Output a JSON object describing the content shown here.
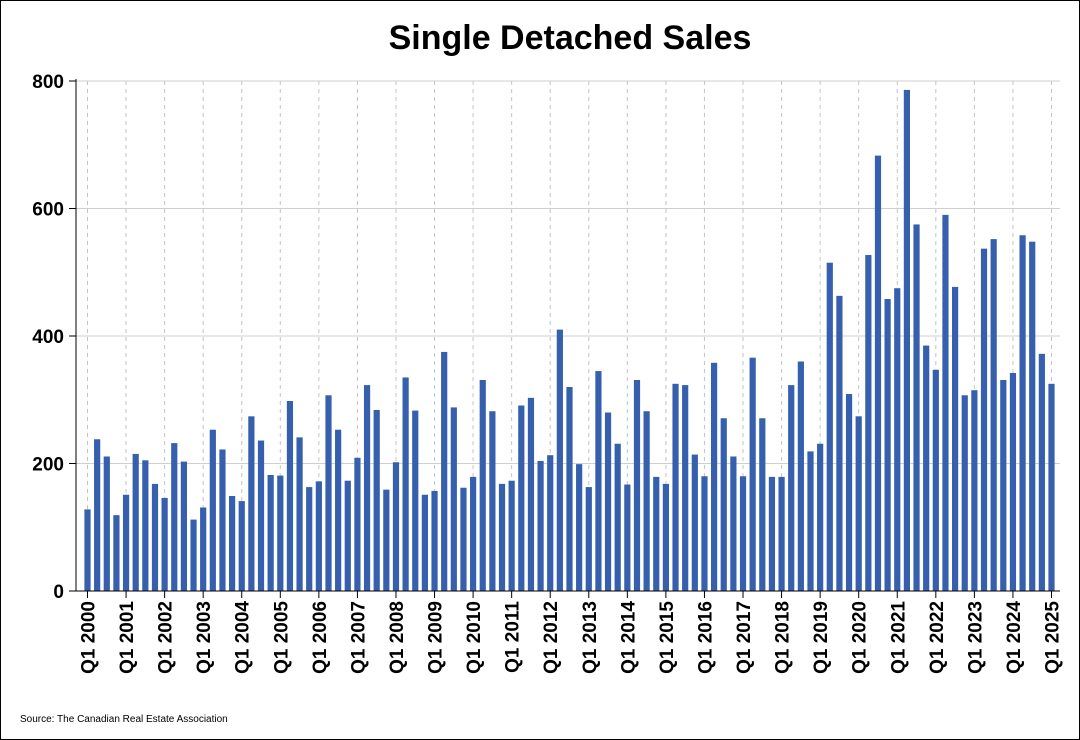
{
  "chart_data": {
    "type": "bar",
    "title": "Single Detached Sales",
    "xlabel": "",
    "ylabel": "",
    "ylim": [
      0,
      800
    ],
    "yticks": [
      0,
      200,
      400,
      600,
      800
    ],
    "grid": true,
    "bar_color": "#3660AD",
    "source": "Source: The Canadian Real Estate Association",
    "x_tick_labels": [
      "Q1 2000",
      "Q1 2001",
      "Q1 2002",
      "Q1 2003",
      "Q1 2004",
      "Q1 2005",
      "Q1 2006",
      "Q1 2007",
      "Q1 2008",
      "Q1 2009",
      "Q1 2010",
      "Q1 2011",
      "Q1 2012",
      "Q1 2013",
      "Q1 2014",
      "Q1 2015",
      "Q1 2016",
      "Q1 2017",
      "Q1 2018",
      "Q1 2019",
      "Q1 2020",
      "Q1 2021",
      "Q1 2022",
      "Q1 2023",
      "Q1 2024",
      "Q1 2025"
    ],
    "categories": [
      "Q1 2000",
      "Q2 2000",
      "Q3 2000",
      "Q4 2000",
      "Q1 2001",
      "Q2 2001",
      "Q3 2001",
      "Q4 2001",
      "Q1 2002",
      "Q2 2002",
      "Q3 2002",
      "Q4 2002",
      "Q1 2003",
      "Q2 2003",
      "Q3 2003",
      "Q4 2003",
      "Q1 2004",
      "Q2 2004",
      "Q3 2004",
      "Q4 2004",
      "Q1 2005",
      "Q2 2005",
      "Q3 2005",
      "Q4 2005",
      "Q1 2006",
      "Q2 2006",
      "Q3 2006",
      "Q4 2006",
      "Q1 2007",
      "Q2 2007",
      "Q3 2007",
      "Q4 2007",
      "Q1 2008",
      "Q2 2008",
      "Q3 2008",
      "Q4 2008",
      "Q1 2009",
      "Q2 2009",
      "Q3 2009",
      "Q4 2009",
      "Q1 2010",
      "Q2 2010",
      "Q3 2010",
      "Q4 2010",
      "Q1 2011",
      "Q2 2011",
      "Q3 2011",
      "Q4 2011",
      "Q1 2012",
      "Q2 2012",
      "Q3 2012",
      "Q4 2012",
      "Q1 2013",
      "Q2 2013",
      "Q3 2013",
      "Q4 2013",
      "Q1 2014",
      "Q2 2014",
      "Q3 2014",
      "Q4 2014",
      "Q1 2015",
      "Q2 2015",
      "Q3 2015",
      "Q4 2015",
      "Q1 2016",
      "Q2 2016",
      "Q3 2016",
      "Q4 2016",
      "Q1 2017",
      "Q2 2017",
      "Q3 2017",
      "Q4 2017",
      "Q1 2018",
      "Q2 2018",
      "Q3 2018",
      "Q4 2018",
      "Q1 2019",
      "Q2 2019",
      "Q3 2019",
      "Q4 2019",
      "Q1 2020",
      "Q2 2020",
      "Q3 2020",
      "Q4 2020",
      "Q1 2021",
      "Q2 2021",
      "Q3 2021",
      "Q4 2021",
      "Q1 2022",
      "Q2 2022",
      "Q3 2022",
      "Q4 2022",
      "Q1 2023",
      "Q2 2023",
      "Q3 2023",
      "Q4 2023",
      "Q1 2024",
      "Q2 2024",
      "Q3 2024",
      "Q4 2024",
      "Q1 2025"
    ],
    "values": [
      128,
      238,
      211,
      119,
      151,
      215,
      205,
      168,
      146,
      232,
      203,
      112,
      131,
      253,
      222,
      149,
      141,
      274,
      236,
      182,
      181,
      298,
      241,
      163,
      172,
      307,
      253,
      173,
      209,
      323,
      284,
      159,
      202,
      335,
      283,
      151,
      157,
      375,
      288,
      162,
      179,
      331,
      282,
      168,
      173,
      291,
      303,
      204,
      213,
      410,
      320,
      199,
      163,
      345,
      280,
      231,
      167,
      331,
      282,
      179,
      168,
      325,
      323,
      214,
      180,
      358,
      271,
      211,
      180,
      366,
      271,
      179,
      179,
      323,
      360,
      219,
      231,
      515,
      463,
      309,
      274,
      527,
      683,
      458,
      475,
      786,
      575,
      385,
      347,
      590,
      477,
      307,
      315,
      537,
      552,
      331,
      342,
      558,
      548,
      372,
      325
    ]
  }
}
